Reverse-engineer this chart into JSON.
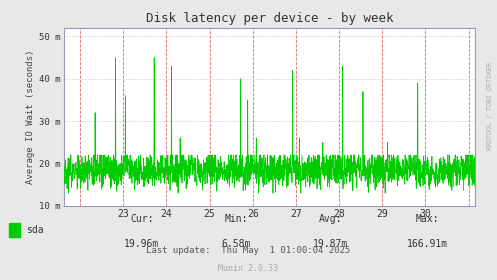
{
  "title": "Disk latency per device - by week",
  "ylabel": "Average IO Wait (seconds)",
  "bg_color": "#e8e8e8",
  "plot_bg_color": "#ffffff",
  "line_color": "#00cc00",
  "grid_color_h": "#cccccc",
  "red_vline_color": "#dd6666",
  "blue_border_color": "#9999bb",
  "ylim_bottom": 10,
  "ylim_top": 52,
  "yticks": [
    10,
    20,
    30,
    40,
    50
  ],
  "ytick_labels": [
    "10 m",
    "20 m",
    "30 m",
    "40 m",
    "50 m"
  ],
  "xticks": [
    22.0,
    23.0,
    24.0,
    25.0,
    26.0,
    27.0,
    28.0,
    29.0,
    30.0,
    31.0
  ],
  "xtick_labels": [
    "",
    "23",
    "24",
    "25",
    "26",
    "27",
    "28",
    "29",
    "30",
    ""
  ],
  "red_vlines": [
    22.0,
    23.0,
    24.0,
    25.0,
    26.0,
    27.0,
    28.0,
    29.0,
    30.0,
    31.0
  ],
  "legend_label": "sda",
  "legend_color": "#00cc00",
  "cur_label": "Cur:",
  "cur_val": "19.96m",
  "min_label": "Min:",
  "min_val": "6.58m",
  "avg_label": "Avg:",
  "avg_val": "19.87m",
  "max_label": "Max:",
  "max_val": "166.91m",
  "last_update": "Last update:  Thu May  1 01:00:04 2025",
  "munin_label": "Munin 2.0.33",
  "watermark": "RRDTOOL / TOBI OETIKER",
  "xmin": 21.62,
  "xmax": 31.15,
  "seed": 42
}
